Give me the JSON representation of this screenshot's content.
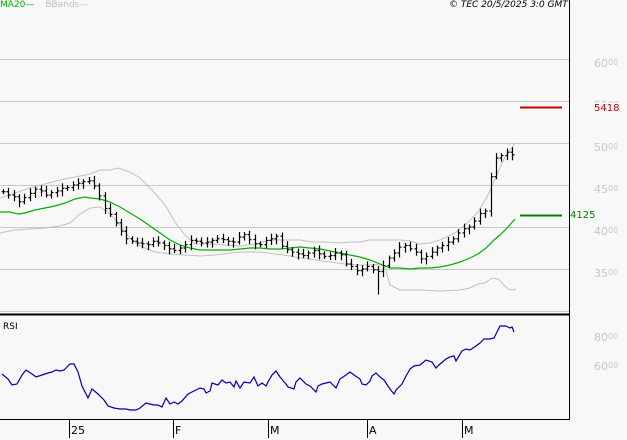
{
  "legend": {
    "ma_label": "MA20",
    "ma_swatch": "—",
    "bb_label": "BBands",
    "bb_swatch": "—"
  },
  "credit": "© TEC 20/5/2025 3:0 GMT",
  "price_axis": {
    "labels": [
      {
        "main": "60",
        "dec": "00"
      },
      {
        "main": "55",
        "dec": "00"
      },
      {
        "main": "50",
        "dec": "00"
      },
      {
        "main": "45",
        "dec": "00"
      },
      {
        "main": "40",
        "dec": "00"
      },
      {
        "main": "35",
        "dec": "00"
      }
    ]
  },
  "markers": {
    "resistance": {
      "label": "54.18",
      "display": "5418",
      "color": "#c00000"
    },
    "ma_last": {
      "label": "41.25",
      "display": "4125",
      "color": "#008000"
    }
  },
  "rsi": {
    "title": "RSI",
    "labels": [
      {
        "main": "80",
        "dec": "00"
      },
      {
        "main": "60",
        "dec": "00"
      }
    ]
  },
  "x_axis": {
    "ticks": [
      "25",
      "F",
      "M",
      "A",
      "M"
    ]
  },
  "colors": {
    "background": "#f8f8f8",
    "grid": "#c8c8c8",
    "candle": "#000000",
    "ma": "#00b000",
    "bbands": "#c0c0c0",
    "rsi": "#0000b0",
    "resistance": "#c00000",
    "ma_marker": "#008000"
  },
  "chart_data": [
    {
      "type": "line",
      "title": "Price (OHLC bars) with MA20 and Bollinger Bands",
      "xlabel": "",
      "ylabel": "",
      "ylim": [
        32,
        64
      ],
      "grid": true,
      "legend_position": "top-left",
      "x_ticks": [
        "25",
        "F",
        "M",
        "A",
        "M"
      ],
      "y_ticks": [
        35,
        40,
        45,
        50,
        55,
        60
      ],
      "series": [
        {
          "name": "Close",
          "values": [
            44.2,
            43.8,
            43.6,
            43.0,
            43.5,
            44.0,
            44.5,
            44.3,
            43.8,
            44.1,
            44.3,
            44.6,
            44.7,
            45.0,
            45.2,
            45.4,
            45.5,
            44.9,
            43.7,
            42.2,
            41.5,
            40.5,
            39.5,
            38.6,
            38.3,
            38.1,
            38.0,
            37.9,
            38.3,
            38.1,
            37.8,
            37.4,
            37.2,
            37.5,
            37.9,
            38.4,
            38.3,
            38.1,
            38.2,
            38.4,
            38.6,
            38.5,
            38.3,
            38.2,
            38.8,
            39.1,
            38.5,
            38.0,
            37.9,
            38.4,
            38.6,
            38.9,
            37.7,
            37.3,
            37.0,
            36.8,
            36.6,
            36.9,
            37.2,
            36.8,
            36.5,
            36.6,
            36.9,
            36.7,
            35.6,
            35.3,
            34.8,
            35.0,
            35.3,
            34.9,
            34.7,
            35.4,
            36.3,
            36.9,
            37.6,
            37.8,
            37.4,
            37.0,
            36.2,
            36.5,
            37.0,
            37.5,
            37.8,
            38.2,
            38.6,
            39.3,
            39.8,
            40.0,
            40.7,
            41.6,
            41.9,
            46.0,
            48.2,
            48.5,
            48.9,
            48.6
          ]
        },
        {
          "name": "MA20",
          "values": [
            42.6,
            42.7,
            42.9,
            43.2,
            43.5,
            43.8,
            44.0,
            43.8,
            43.0,
            42.0,
            40.8,
            39.7,
            38.9,
            38.4,
            38.0,
            37.9,
            38.1,
            38.3,
            38.3,
            38.1,
            37.9,
            37.6,
            37.3,
            36.8,
            36.3,
            35.9,
            35.9,
            36.0,
            36.3,
            36.9,
            37.8,
            39.0,
            40.3,
            41.25
          ]
        },
        {
          "name": "BBand Upper",
          "values": [
            44.5,
            45.0,
            45.5,
            46.2,
            47.0,
            47.4,
            47.3,
            46.6,
            45.2,
            43.5,
            41.5,
            40.0,
            39.3,
            39.3,
            39.2,
            38.8,
            38.8,
            39.2,
            39.1,
            39.0,
            38.6,
            38.2,
            38.5,
            38.6,
            38.7,
            38.5,
            38.1,
            38.2,
            39.0,
            40.0,
            41.2,
            43.5,
            46.3,
            50.0
          ]
        },
        {
          "name": "BBand Lower",
          "values": [
            40.3,
            40.6,
            40.8,
            41.0,
            41.2,
            41.7,
            42.2,
            42.0,
            40.5,
            38.6,
            37.0,
            36.4,
            36.4,
            36.6,
            36.7,
            37.0,
            37.1,
            37.3,
            37.2,
            37.0,
            36.6,
            36.1,
            35.8,
            35.0,
            34.6,
            34.3,
            34.3,
            34.2,
            34.3,
            34.8,
            35.5,
            34.5,
            34.0,
            34.2
          ]
        }
      ],
      "annotations": [
        {
          "type": "hline",
          "value": 54.18,
          "label": "54.18",
          "color": "#c00000"
        },
        {
          "type": "hline",
          "value": 41.25,
          "label": "41.25",
          "color": "#008000"
        }
      ]
    },
    {
      "type": "line",
      "title": "RSI",
      "xlabel": "",
      "ylabel": "",
      "y_ticks": [
        60,
        80
      ],
      "ylim": [
        30,
        90
      ],
      "series": [
        {
          "name": "RSI",
          "values": [
            61,
            57,
            55,
            61,
            64,
            61,
            63,
            65,
            64,
            67,
            61,
            51,
            46,
            44,
            44,
            45,
            47,
            44,
            46,
            47,
            51,
            54,
            56,
            53,
            52,
            56,
            55,
            58,
            53,
            57,
            60,
            59,
            52,
            47,
            51,
            53,
            49,
            46,
            49,
            53,
            52,
            49,
            47,
            43,
            50,
            52,
            51,
            48,
            46,
            55,
            58,
            62,
            63,
            61,
            57,
            60,
            61,
            65,
            70,
            71,
            73,
            76,
            79,
            78,
            81,
            81,
            84,
            84,
            86,
            88,
            87,
            84
          ]
        }
      ]
    }
  ]
}
